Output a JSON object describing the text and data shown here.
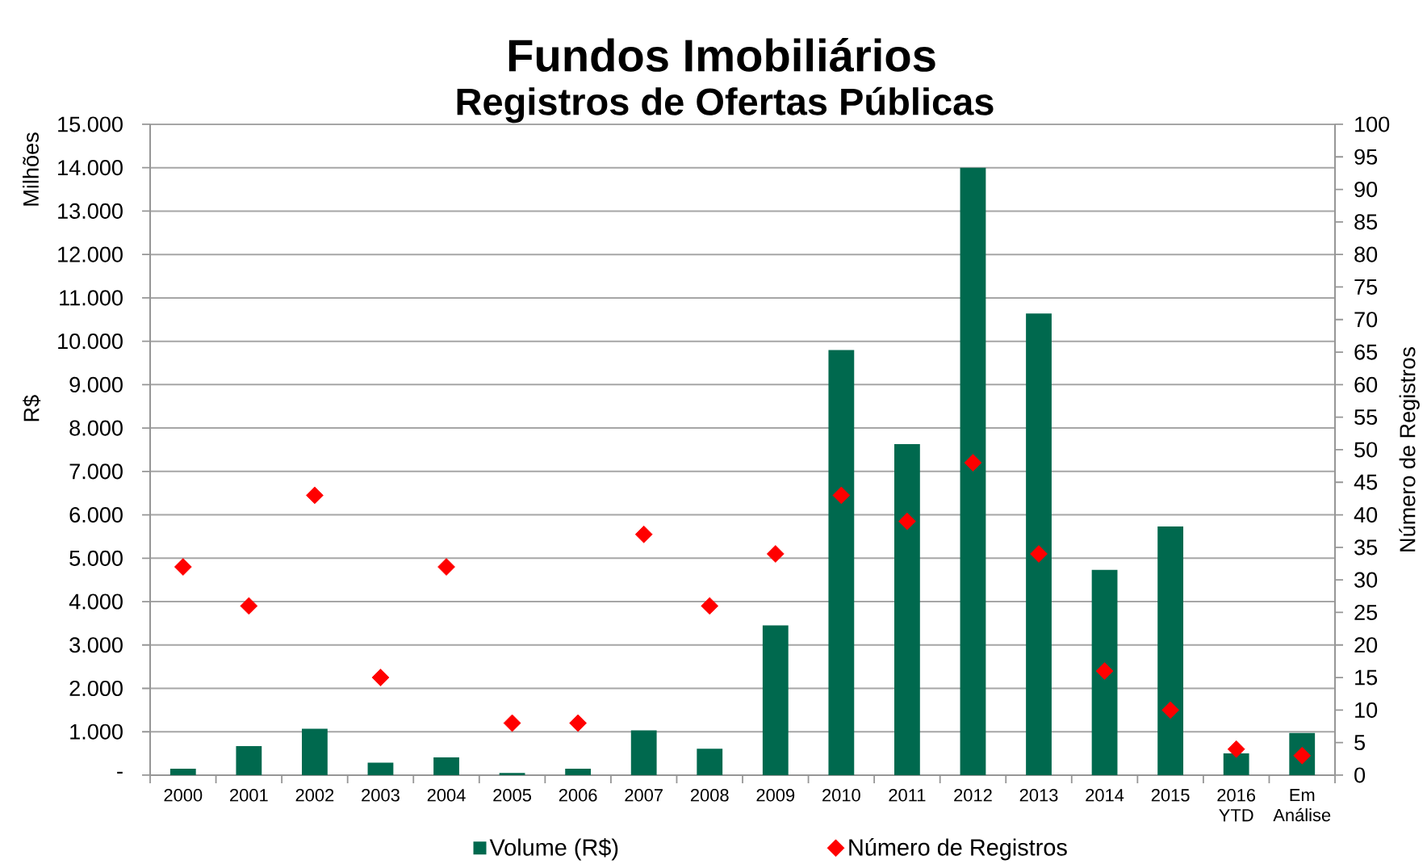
{
  "chart_data": {
    "type": "bar",
    "title": "Fundos Imobiliários",
    "subtitle": "Registros de Ofertas Públicas",
    "ylabel": "R$",
    "y2label": "Número de Registros",
    "annotations": [
      "Milhões"
    ],
    "categories": [
      "2000",
      "2001",
      "2002",
      "2003",
      "2004",
      "2005",
      "2006",
      "2007",
      "2008",
      "2009",
      "2010",
      "2011",
      "2012",
      "2013",
      "2014",
      "2015",
      "2016 YTD",
      "Em Análise"
    ],
    "series": [
      {
        "name": "Volume (R$)",
        "color": "#00694e",
        "values": [
          150,
          670,
          1070,
          290,
          410,
          50,
          150,
          1030,
          610,
          3450,
          9800,
          7630,
          14000,
          10640,
          4730,
          5730,
          500,
          970
        ]
      },
      {
        "name": "Número de Registros",
        "type": "scatter",
        "axis": "y2",
        "marker": "diamond",
        "color": "#ff0000",
        "values": [
          32,
          26,
          43,
          15,
          32,
          8,
          8,
          37,
          26,
          34,
          43,
          39,
          48,
          34,
          16,
          10,
          4,
          3
        ]
      }
    ],
    "ylim": [
      0,
      15000
    ],
    "yticks": [
      {
        "value": 0,
        "label": "-"
      },
      {
        "value": 1000,
        "label": "1.000"
      },
      {
        "value": 2000,
        "label": "2.000"
      },
      {
        "value": 3000,
        "label": "3.000"
      },
      {
        "value": 4000,
        "label": "4.000"
      },
      {
        "value": 5000,
        "label": "5.000"
      },
      {
        "value": 6000,
        "label": "6.000"
      },
      {
        "value": 7000,
        "label": "7.000"
      },
      {
        "value": 8000,
        "label": "8.000"
      },
      {
        "value": 9000,
        "label": "9.000"
      },
      {
        "value": 10000,
        "label": "10.000"
      },
      {
        "value": 11000,
        "label": "11.000"
      },
      {
        "value": 12000,
        "label": "12.000"
      },
      {
        "value": 13000,
        "label": "13.000"
      },
      {
        "value": 14000,
        "label": "14.000"
      },
      {
        "value": 15000,
        "label": "15.000"
      }
    ],
    "y2lim": [
      0,
      100
    ],
    "y2ticks": [
      0,
      5,
      10,
      15,
      20,
      25,
      30,
      35,
      40,
      45,
      50,
      55,
      60,
      65,
      70,
      75,
      80,
      85,
      90,
      95,
      100
    ],
    "grid": "y",
    "legend": "bottom"
  }
}
